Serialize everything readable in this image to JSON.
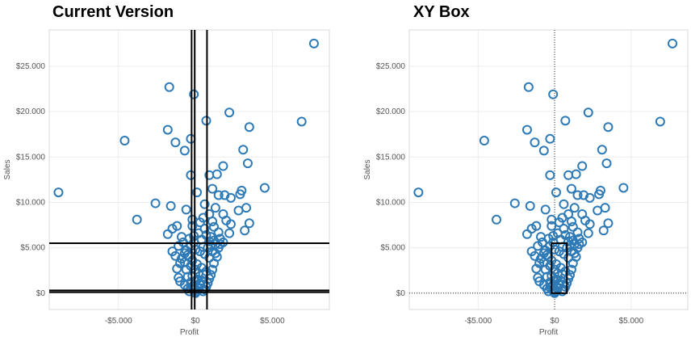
{
  "chart_data": [
    {
      "type": "scatter",
      "title": "Current Version",
      "xlabel": "Profit",
      "ylabel": "Sales",
      "xlim": [
        -9500,
        8700
      ],
      "ylim": [
        -1800,
        29000
      ],
      "xticks": [
        -5000,
        0,
        5000
      ],
      "xtick_labels": [
        "-$5.000",
        "$0",
        "$5.000"
      ],
      "yticks": [
        0,
        5000,
        10000,
        15000,
        20000,
        25000
      ],
      "ytick_labels": [
        "$0",
        "$5.000",
        "$10.000",
        "$15.000",
        "$20.000",
        "$25.000"
      ],
      "grid": true,
      "marker_color": "#2e7ab6",
      "overlay": "crosshair-lines",
      "overlay_color": "#000000",
      "overlay_x": [
        -250,
        -50,
        750
      ],
      "overlay_y": [
        100,
        300,
        5500
      ],
      "points": [
        [
          7700,
          27500
        ],
        [
          -1700,
          22700
        ],
        [
          -100,
          21900
        ],
        [
          2200,
          19900
        ],
        [
          700,
          19000
        ],
        [
          6900,
          18900
        ],
        [
          3500,
          18300
        ],
        [
          -1800,
          18000
        ],
        [
          -4600,
          16800
        ],
        [
          -3800,
          8100
        ],
        [
          -8900,
          11100
        ],
        [
          -1300,
          16600
        ],
        [
          -300,
          17000
        ],
        [
          -700,
          15700
        ],
        [
          3100,
          15800
        ],
        [
          3400,
          14300
        ],
        [
          1800,
          14000
        ],
        [
          1400,
          13100
        ],
        [
          900,
          13000
        ],
        [
          -300,
          13000
        ],
        [
          4500,
          11600
        ],
        [
          3000,
          11300
        ],
        [
          1100,
          11500
        ],
        [
          1900,
          10800
        ],
        [
          -2600,
          9900
        ],
        [
          -1600,
          9600
        ],
        [
          100,
          11100
        ],
        [
          2900,
          10900
        ],
        [
          2300,
          10500
        ],
        [
          1500,
          10800
        ],
        [
          3300,
          9400
        ],
        [
          2800,
          9100
        ],
        [
          1800,
          8700
        ],
        [
          2000,
          8000
        ],
        [
          3500,
          7700
        ],
        [
          900,
          8700
        ],
        [
          1300,
          9400
        ],
        [
          600,
          9800
        ],
        [
          -600,
          9200
        ],
        [
          -1200,
          7400
        ],
        [
          -1500,
          7100
        ],
        [
          -1800,
          6500
        ],
        [
          2200,
          6600
        ],
        [
          1500,
          6700
        ],
        [
          3200,
          6900
        ],
        [
          2300,
          7600
        ],
        [
          1100,
          7900
        ],
        [
          500,
          8300
        ],
        [
          -200,
          8100
        ],
        [
          -900,
          6200
        ],
        [
          1800,
          5600
        ],
        [
          1300,
          5400
        ],
        [
          900,
          5700
        ],
        [
          -100,
          6300
        ],
        [
          -1100,
          5200
        ],
        [
          -1500,
          4600
        ],
        [
          -1300,
          4100
        ],
        [
          -900,
          3800
        ],
        [
          -1000,
          3300
        ],
        [
          -1200,
          2700
        ],
        [
          -1100,
          1700
        ],
        [
          -1000,
          1300
        ],
        [
          -700,
          900
        ],
        [
          -500,
          500
        ],
        [
          -400,
          200
        ],
        [
          1500,
          5000
        ],
        [
          1400,
          4000
        ],
        [
          1200,
          3300
        ],
        [
          1100,
          2600
        ],
        [
          1000,
          2000
        ],
        [
          900,
          1600
        ],
        [
          800,
          1100
        ],
        [
          700,
          700
        ],
        [
          600,
          400
        ],
        [
          500,
          200
        ],
        [
          -800,
          5600
        ],
        [
          -600,
          4700
        ],
        [
          -700,
          3400
        ],
        [
          -600,
          2600
        ],
        [
          -500,
          1800
        ],
        [
          -300,
          1200
        ],
        [
          -200,
          700
        ],
        [
          -100,
          300
        ],
        [
          -50,
          100
        ],
        [
          0,
          0
        ],
        [
          100,
          200
        ],
        [
          200,
          500
        ],
        [
          300,
          900
        ],
        [
          400,
          1400
        ],
        [
          500,
          2100
        ],
        [
          -400,
          6000
        ],
        [
          200,
          6600
        ],
        [
          700,
          6400
        ],
        [
          1000,
          6200
        ],
        [
          400,
          5900
        ],
        [
          1600,
          6000
        ],
        [
          1200,
          7300
        ],
        [
          600,
          7100
        ],
        [
          -200,
          7400
        ],
        [
          300,
          7800
        ],
        [
          -300,
          5200
        ],
        [
          0,
          4800
        ],
        [
          300,
          4600
        ],
        [
          600,
          4300
        ],
        [
          900,
          3900
        ],
        [
          -400,
          4000
        ],
        [
          -200,
          3600
        ],
        [
          100,
          3200
        ],
        [
          400,
          2800
        ],
        [
          700,
          2400
        ],
        [
          -300,
          3000
        ],
        [
          0,
          2600
        ],
        [
          200,
          2200
        ],
        [
          -200,
          1900
        ],
        [
          100,
          1500
        ],
        [
          300,
          1100
        ],
        [
          -100,
          900
        ],
        [
          200,
          600
        ],
        [
          -300,
          600
        ],
        [
          0,
          1300
        ],
        [
          500,
          5100
        ],
        [
          -100,
          5600
        ],
        [
          800,
          5000
        ],
        [
          1100,
          4600
        ],
        [
          -500,
          4200
        ],
        [
          1300,
          4400
        ],
        [
          1000,
          5300
        ],
        [
          -700,
          4400
        ],
        [
          1200,
          5800
        ],
        [
          1600,
          5400
        ]
      ]
    },
    {
      "type": "scatter",
      "title": "XY Box",
      "xlabel": "Profit",
      "ylabel": "Sales",
      "xlim": [
        -9500,
        8700
      ],
      "ylim": [
        -1800,
        29000
      ],
      "xticks": [
        -5000,
        0,
        5000
      ],
      "xtick_labels": [
        "-$5.000",
        "$0",
        "$5.000"
      ],
      "yticks": [
        0,
        5000,
        10000,
        15000,
        20000,
        25000
      ],
      "ytick_labels": [
        "$0",
        "$5.000",
        "$10.000",
        "$15.000",
        "$20.000",
        "$25.000"
      ],
      "grid": true,
      "marker_color": "#2e7ab6",
      "overlay": "box",
      "overlay_color": "#000000",
      "box": {
        "x0": -200,
        "x1": 800,
        "y0": 0,
        "y1": 5500
      },
      "zero_lines": "dotted",
      "points": "same-as-previous"
    }
  ]
}
